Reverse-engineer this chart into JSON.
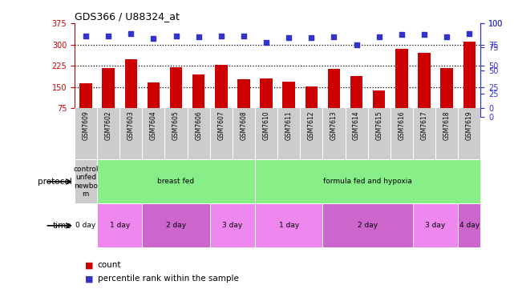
{
  "title": "GDS366 / U88324_at",
  "samples": [
    "GSM7609",
    "GSM7602",
    "GSM7603",
    "GSM7604",
    "GSM7605",
    "GSM7606",
    "GSM7607",
    "GSM7608",
    "GSM7610",
    "GSM7611",
    "GSM7612",
    "GSM7613",
    "GSM7614",
    "GSM7615",
    "GSM7616",
    "GSM7617",
    "GSM7618",
    "GSM7619"
  ],
  "counts": [
    163,
    218,
    248,
    168,
    220,
    196,
    228,
    178,
    180,
    170,
    152,
    215,
    188,
    137,
    285,
    270,
    218,
    310
  ],
  "percentiles": [
    85,
    85,
    88,
    82,
    85,
    84,
    85,
    85,
    78,
    83,
    83,
    84,
    75,
    84,
    87,
    87,
    84,
    88
  ],
  "ylim_left": [
    75,
    375
  ],
  "ylim_right": [
    0,
    100
  ],
  "yticks_left": [
    75,
    150,
    225,
    300,
    375
  ],
  "yticks_right": [
    0,
    25,
    50,
    75,
    100
  ],
  "bar_color": "#cc0000",
  "dot_color": "#3333cc",
  "hline_values": [
    150,
    225,
    300
  ],
  "protocol_groups": [
    {
      "label": "control\nunfed\nnewbo\nrn",
      "start": 0,
      "end": 1,
      "color": "#cccccc"
    },
    {
      "label": "breast fed",
      "start": 1,
      "end": 8,
      "color": "#88ee88"
    },
    {
      "label": "formula fed and hypoxia",
      "start": 8,
      "end": 18,
      "color": "#88ee88"
    }
  ],
  "time_groups": [
    {
      "label": "0 day",
      "start": 0,
      "end": 1,
      "color": "#ffffff"
    },
    {
      "label": "1 day",
      "start": 1,
      "end": 3,
      "color": "#ee88ee"
    },
    {
      "label": "2 day",
      "start": 3,
      "end": 6,
      "color": "#cc66cc"
    },
    {
      "label": "3 day",
      "start": 6,
      "end": 8,
      "color": "#ee88ee"
    },
    {
      "label": "1 day",
      "start": 8,
      "end": 11,
      "color": "#ee88ee"
    },
    {
      "label": "2 day",
      "start": 11,
      "end": 15,
      "color": "#cc66cc"
    },
    {
      "label": "3 day",
      "start": 15,
      "end": 17,
      "color": "#ee88ee"
    },
    {
      "label": "4 day",
      "start": 17,
      "end": 18,
      "color": "#cc66cc"
    }
  ],
  "left_axis_color": "#cc0000",
  "right_axis_color": "#3333cc",
  "bg_color": "#ffffff",
  "plot_bg_color": "#ffffff",
  "xtick_bg_color": "#cccccc"
}
